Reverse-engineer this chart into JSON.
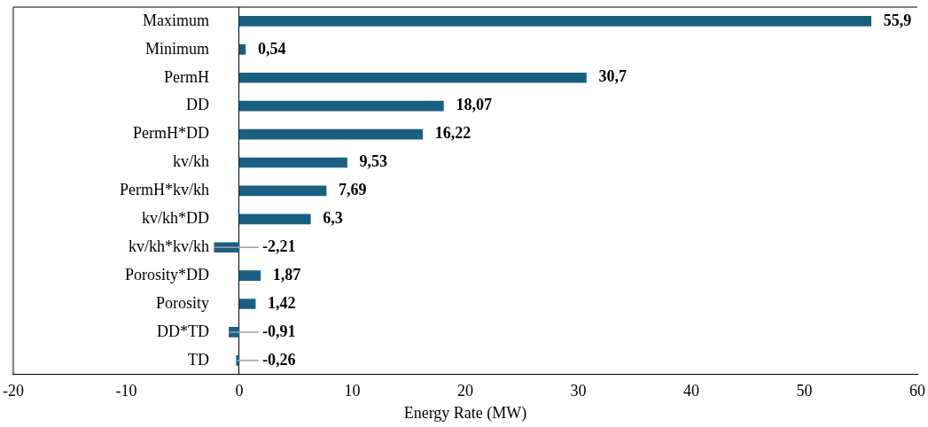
{
  "chart_data": {
    "type": "bar",
    "orientation": "horizontal",
    "xlabel": "Energy Rate (MW)",
    "categories": [
      "Maximum",
      "Minimum",
      "PermH",
      "DD",
      "PermH*DD",
      "kv/kh",
      "PermH*kv/kh",
      "kv/kh*DD",
      "kv/kh*kv/kh",
      "Porosity*DD",
      "Porosity",
      "DD*TD",
      "TD"
    ],
    "values": [
      55.9,
      0.54,
      30.7,
      18.07,
      16.22,
      9.53,
      7.69,
      6.3,
      -2.21,
      1.87,
      1.42,
      -0.91,
      -0.26
    ],
    "value_labels": [
      "55,9",
      "0,54",
      "30,7",
      "18,07",
      "16,22",
      "9,53",
      "7,69",
      "6,3",
      "-2,21",
      "1,87",
      "1,42",
      "-0,91",
      "-0,26"
    ],
    "color": "#1b5f80",
    "xlim": [
      -20,
      60
    ],
    "xticks": [
      -20,
      -10,
      0,
      10,
      20,
      30,
      40,
      50,
      60
    ],
    "grid": false,
    "legend": false
  }
}
